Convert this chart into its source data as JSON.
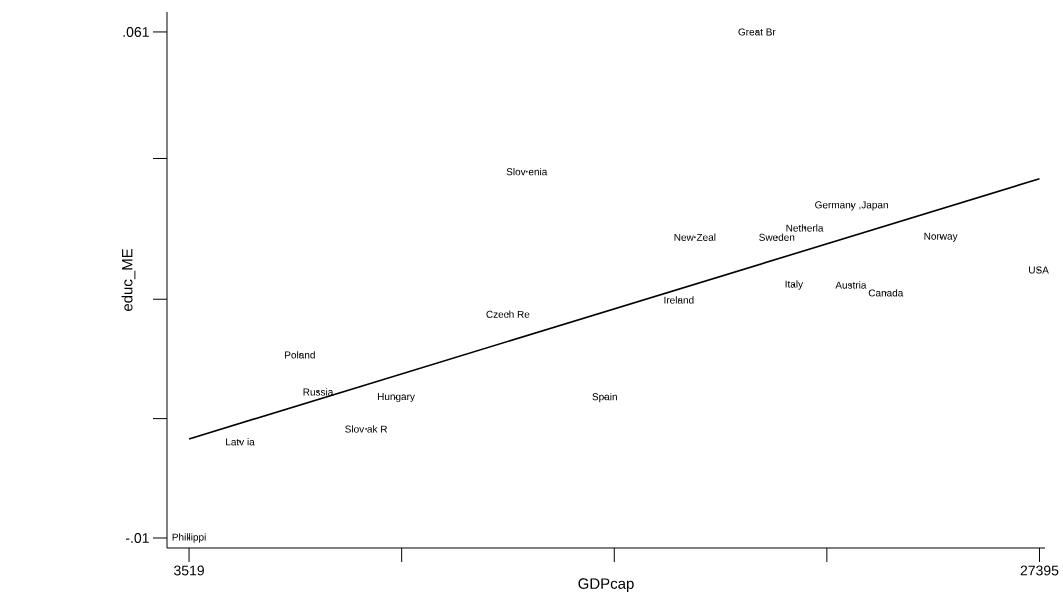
{
  "chart_data": {
    "type": "scatter",
    "xlabel": "GDPcap",
    "ylabel": "educ_ME",
    "xlim": [
      2900,
      27550
    ],
    "ylim": [
      -0.0114,
      0.0638
    ],
    "xticks": [
      {
        "value": 3519,
        "label": "3519"
      },
      {
        "value": 9488,
        "label": null
      },
      {
        "value": 15457,
        "label": null
      },
      {
        "value": 21426,
        "label": null
      },
      {
        "value": 27395,
        "label": "27395"
      }
    ],
    "yticks": [
      {
        "value": -0.01,
        "label": "-.01"
      },
      {
        "value": 0.00675,
        "label": null
      },
      {
        "value": 0.0235,
        "label": null
      },
      {
        "value": 0.04325,
        "label": null
      },
      {
        "value": 0.061,
        "label": ".061"
      }
    ],
    "series": [
      {
        "type": "line",
        "color": "#000000",
        "x": [
          3519,
          27395
        ],
        "values": [
          0.0039,
          0.0404
        ]
      },
      {
        "type": "scatter",
        "marker": "circle",
        "color": "#000000",
        "x": [
          19460,
          13000,
          22120,
          20800,
          17720,
          20020,
          24620,
          27370,
          20500,
          22100,
          23080,
          17270,
          12470,
          6630,
          7140,
          9330,
          15190,
          8490,
          4950,
          3519
        ],
        "values": [
          0.061,
          0.0414,
          0.0366,
          0.0335,
          0.0322,
          0.0322,
          0.0322,
          0.0276,
          0.0255,
          0.0255,
          0.0244,
          0.0234,
          0.0214,
          0.0157,
          0.0105,
          0.0097,
          0.0097,
          0.0053,
          0.0035,
          -0.01
        ]
      }
    ],
    "annotations": [
      {
        "text": "Great Br",
        "x": 19460,
        "y": 0.061
      },
      {
        "text": "Slov enia",
        "x": 13000,
        "y": 0.0414
      },
      {
        "text": "Germany ,Japan",
        "x": 22120,
        "y": 0.0366
      },
      {
        "text": "Netherla",
        "x": 20800,
        "y": 0.0335
      },
      {
        "text": "New Zeal",
        "x": 17720,
        "y": 0.0322
      },
      {
        "text": "Sweden",
        "x": 20020,
        "y": 0.0322
      },
      {
        "text": "Norway",
        "x": 24620,
        "y": 0.0322
      },
      {
        "text": "USA",
        "x": 27370,
        "y": 0.0276
      },
      {
        "text": "Italy",
        "x": 20500,
        "y": 0.0255
      },
      {
        "text": "Austria",
        "x": 22100,
        "y": 0.0255
      },
      {
        "text": "Canada",
        "x": 23080,
        "y": 0.0244
      },
      {
        "text": "Ireland",
        "x": 17270,
        "y": 0.0234
      },
      {
        "text": "Czech Re",
        "x": 12470,
        "y": 0.0214
      },
      {
        "text": "Poland",
        "x": 6630,
        "y": 0.0157
      },
      {
        "text": "Russia",
        "x": 7140,
        "y": 0.0105
      },
      {
        "text": "Hungary",
        "x": 9330,
        "y": 0.0097
      },
      {
        "text": "Spain",
        "x": 15190,
        "y": 0.0097
      },
      {
        "text": "Slov ak R",
        "x": 8490,
        "y": 0.0053
      },
      {
        "text": "Latv ia",
        "x": 4950,
        "y": 0.0035
      },
      {
        "text": "Phillippi",
        "x": 3519,
        "y": -0.01
      }
    ]
  }
}
